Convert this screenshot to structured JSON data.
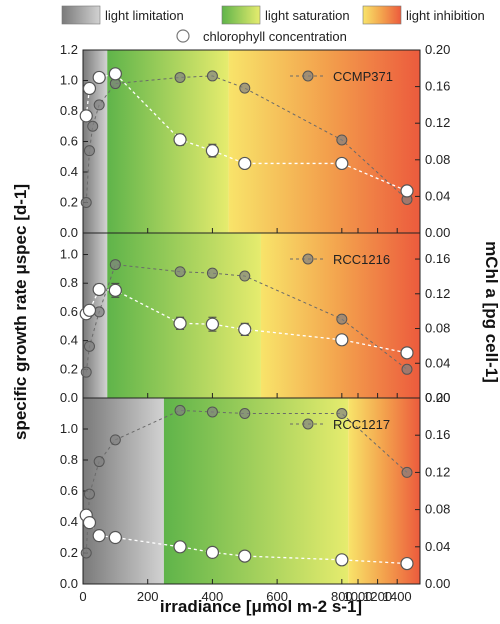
{
  "legend": {
    "limitation": "light limitation",
    "saturation": "light saturation",
    "inhibition": "light inhibition",
    "chlorophyll": "chlorophyll concentration"
  },
  "axes": {
    "xlabel": "irradiance [μmol m-2 s-1]",
    "ylabel_left": "specific growth rate μspec [d-1]",
    "ylabel_right": "mChl a [pg cell-1]"
  },
  "colors": {
    "growth_marker": "#808080",
    "chl_marker": "#ffffff",
    "limitation_gradient": [
      "#7a7a7a",
      "#c8c8c8"
    ],
    "saturation_gradient": [
      "#5fb44a",
      "#e6ec6e"
    ],
    "inhibition_gradient": [
      "#f8e46a",
      "#ec5b3d"
    ]
  },
  "chart_data": [
    {
      "type": "scatter",
      "strain": "CCMP371",
      "x_ticks": [
        0,
        200,
        400,
        600,
        800,
        1000,
        1200,
        1400
      ],
      "x_break": [
        850,
        1500
      ],
      "left_ylim": [
        0,
        1.2
      ],
      "left_ticks": [
        0.0,
        0.2,
        0.4,
        0.6,
        0.8,
        1.0,
        1.2
      ],
      "right_ylim": [
        0,
        0.2
      ],
      "right_ticks": [
        0.0,
        0.04,
        0.08,
        0.12,
        0.16,
        0.2
      ],
      "regions": {
        "limitation": [
          0,
          75
        ],
        "saturation": [
          75,
          450
        ],
        "inhibition": [
          450,
          1500
        ]
      },
      "growth_rate": {
        "x": [
          10,
          20,
          30,
          50,
          100,
          300,
          400,
          500,
          800,
          1500
        ],
        "y": [
          0.2,
          0.54,
          0.7,
          0.84,
          0.98,
          1.02,
          1.03,
          0.95,
          0.61,
          0.22
        ]
      },
      "chlorophyll": {
        "x": [
          10,
          20,
          50,
          100,
          300,
          400,
          500,
          800,
          1500
        ],
        "y": [
          0.128,
          0.158,
          0.17,
          0.174,
          0.102,
          0.09,
          0.076,
          0.076,
          0.046
        ],
        "err": [
          0.004,
          0.004,
          0.004,
          0.005,
          0.006,
          0.007,
          0.004,
          0.003,
          0.003
        ]
      }
    },
    {
      "type": "scatter",
      "strain": "RCC1216",
      "x_ticks": [
        0,
        200,
        400,
        600,
        800,
        1000,
        1200,
        1400
      ],
      "x_break": [
        850,
        1500
      ],
      "left_ylim": [
        0,
        1.15
      ],
      "left_ticks": [
        0.0,
        0.2,
        0.4,
        0.6,
        0.8,
        1.0
      ],
      "right_ylim": [
        0,
        0.19
      ],
      "right_ticks": [
        0.0,
        0.04,
        0.08,
        0.12,
        0.16
      ],
      "regions": {
        "limitation": [
          0,
          75
        ],
        "saturation": [
          75,
          550
        ],
        "inhibition": [
          550,
          1500
        ]
      },
      "growth_rate": {
        "x": [
          10,
          20,
          50,
          100,
          300,
          400,
          500,
          800,
          1500
        ],
        "y": [
          0.18,
          0.36,
          0.6,
          0.93,
          0.88,
          0.87,
          0.85,
          0.55,
          0.2
        ]
      },
      "chlorophyll": {
        "x": [
          10,
          20,
          50,
          100,
          300,
          400,
          500,
          800,
          1500
        ],
        "y": [
          0.097,
          0.101,
          0.125,
          0.124,
          0.086,
          0.085,
          0.079,
          0.067,
          0.052
        ],
        "err": [
          0.003,
          0.003,
          0.006,
          0.008,
          0.007,
          0.008,
          0.007,
          0.004,
          0.003
        ]
      }
    },
    {
      "type": "scatter",
      "strain": "RCC1217",
      "x_ticks": [
        0,
        200,
        400,
        600,
        800,
        1000,
        1200,
        1400
      ],
      "x_break": [
        850,
        1500
      ],
      "left_ylim": [
        0,
        1.2
      ],
      "left_ticks": [
        0.0,
        0.2,
        0.4,
        0.6,
        0.8,
        1.0
      ],
      "right_ylim": [
        0,
        0.2
      ],
      "right_ticks": [
        0.0,
        0.04,
        0.08,
        0.12,
        0.16,
        0.2
      ],
      "regions": {
        "limitation": [
          0,
          250
        ],
        "saturation": [
          250,
          820
        ],
        "inhibition": [
          820,
          1500
        ]
      },
      "growth_rate": {
        "x": [
          10,
          20,
          50,
          100,
          300,
          400,
          500,
          800,
          1500
        ],
        "y": [
          0.2,
          0.58,
          0.79,
          0.93,
          1.12,
          1.11,
          1.1,
          1.1,
          0.72
        ]
      },
      "chlorophyll": {
        "x": [
          10,
          20,
          50,
          100,
          300,
          400,
          500,
          800,
          1500
        ],
        "y": [
          0.074,
          0.066,
          0.052,
          0.05,
          0.04,
          0.034,
          0.03,
          0.026,
          0.022
        ],
        "err": [
          0.003,
          0.003,
          0.003,
          0.003,
          0.004,
          0.004,
          0.003,
          0.003,
          0.003
        ]
      }
    }
  ]
}
